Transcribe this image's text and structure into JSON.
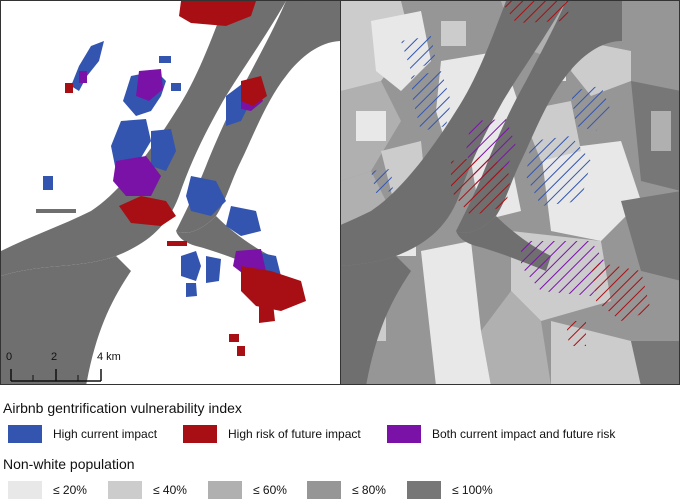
{
  "scalebar": {
    "ticks": [
      "0",
      "2",
      "4 km"
    ]
  },
  "legend": {
    "vulnerability": {
      "title": "Airbnb gentrification vulnerability index",
      "items": [
        {
          "label": "High current impact",
          "color": "#3355b0"
        },
        {
          "label": "High risk of future impact",
          "color": "#a80f14"
        },
        {
          "label": "Both current impact and future risk",
          "color": "#7a12a8"
        }
      ]
    },
    "population": {
      "title": "Non-white population",
      "items": [
        {
          "label": "≤ 20%",
          "color": "#e8e8e8"
        },
        {
          "label": "≤ 40%",
          "color": "#cccccc"
        },
        {
          "label": "≤ 60%",
          "color": "#b0b0b0"
        },
        {
          "label": "≤ 80%",
          "color": "#969696"
        },
        {
          "label": "≤ 100%",
          "color": "#777777"
        }
      ]
    }
  },
  "colors": {
    "water": "#6f6f6f",
    "land_left": "#ffffff"
  }
}
